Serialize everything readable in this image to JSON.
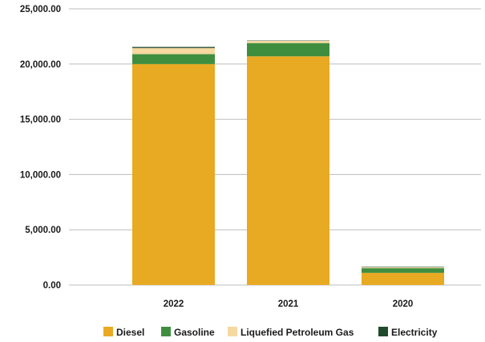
{
  "chart_data": {
    "type": "bar",
    "stacked": true,
    "categories": [
      "2022",
      "2021",
      "2020"
    ],
    "series": [
      {
        "name": "Diesel",
        "color": "#E8AA22",
        "values": [
          20000,
          20700,
          1100
        ]
      },
      {
        "name": "Gasoline",
        "color": "#3F8E3F",
        "values": [
          900,
          1200,
          420
        ]
      },
      {
        "name": "Liquefied Petroleum Gas",
        "color": "#F5D9A0",
        "values": [
          550,
          200,
          90
        ]
      },
      {
        "name": "Electricity",
        "color": "#1F4A2C",
        "values": [
          100,
          30,
          40
        ]
      }
    ],
    "ylim": [
      0,
      25000
    ],
    "yticks": [
      0,
      5000,
      10000,
      15000,
      20000,
      25000
    ],
    "ytick_labels": [
      "0.00",
      "5,000.00",
      "10,000.00",
      "15,000.00",
      "20,000.00",
      "25,000.00"
    ],
    "grid": true,
    "legend_position": "bottom",
    "title": "",
    "xlabel": "",
    "ylabel": ""
  }
}
